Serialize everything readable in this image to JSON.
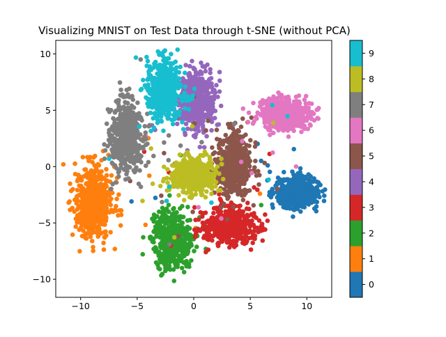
{
  "chart_data": {
    "type": "scatter",
    "title": "Visualizing MNIST on Test Data through t-SNE (without PCA)",
    "xlabel": "",
    "ylabel": "",
    "xlim": [
      -12.2,
      12.2
    ],
    "ylim": [
      -11.6,
      11.2
    ],
    "xticks": [
      -10,
      -5,
      0,
      5,
      10
    ],
    "yticks": [
      -10,
      -5,
      0,
      5,
      10
    ],
    "grid": false,
    "colorbar": {
      "labels": [
        "0",
        "1",
        "2",
        "3",
        "4",
        "5",
        "6",
        "7",
        "8",
        "9"
      ],
      "colors": [
        "#1f77b4",
        "#ff7f0e",
        "#2ca02c",
        "#d62728",
        "#9467bd",
        "#8c564b",
        "#e377c2",
        "#7f7f7f",
        "#bcbd22",
        "#17becf"
      ]
    },
    "clusters": [
      {
        "label": "0",
        "color": "#1f77b4",
        "center": [
          9.1,
          -2.3
        ],
        "spread": [
          1.5,
          1.1
        ]
      },
      {
        "label": "1",
        "color": "#ff7f0e",
        "center": [
          -8.8,
          -3.2
        ],
        "spread": [
          1.3,
          2.6
        ]
      },
      {
        "label": "2",
        "color": "#2ca02c",
        "center": [
          -1.8,
          -6.6
        ],
        "spread": [
          1.4,
          2.0
        ]
      },
      {
        "label": "3",
        "color": "#d62728",
        "center": [
          3.2,
          -5.3
        ],
        "spread": [
          1.8,
          1.3
        ]
      },
      {
        "label": "4",
        "color": "#9467bd",
        "center": [
          0.3,
          5.9
        ],
        "spread": [
          1.3,
          2.0
        ]
      },
      {
        "label": "5",
        "color": "#8c564b",
        "center": [
          3.6,
          0.2
        ],
        "spread": [
          1.2,
          2.3
        ]
      },
      {
        "label": "6",
        "color": "#e377c2",
        "center": [
          8.3,
          4.6
        ],
        "spread": [
          1.8,
          1.1
        ]
      },
      {
        "label": "7",
        "color": "#7f7f7f",
        "center": [
          -6.0,
          2.6
        ],
        "spread": [
          1.1,
          2.6
        ]
      },
      {
        "label": "8",
        "color": "#bcbd22",
        "center": [
          0.0,
          -0.8
        ],
        "spread": [
          1.6,
          1.2
        ]
      },
      {
        "label": "9",
        "color": "#17becf",
        "center": [
          -2.6,
          6.8
        ],
        "spread": [
          1.2,
          2.2
        ]
      }
    ]
  }
}
